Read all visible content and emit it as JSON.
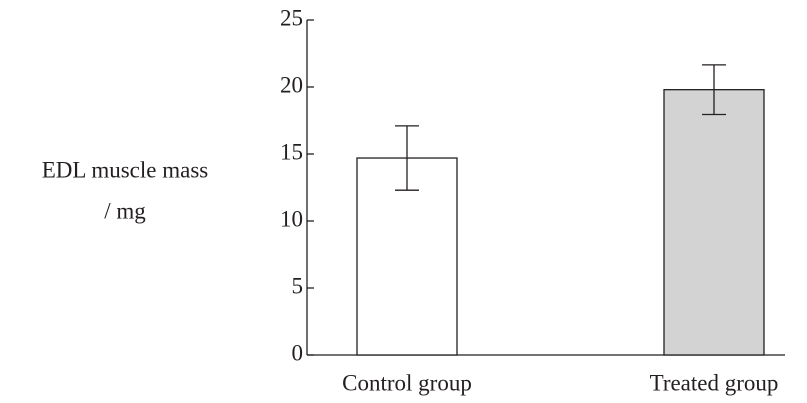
{
  "chart_data": {
    "type": "bar",
    "y_label": [
      "EDL muscle mass",
      "/ mg"
    ],
    "categories": [
      "Control group",
      "Treated group"
    ],
    "values": [
      14.7,
      19.8
    ],
    "errors": [
      2.4,
      1.85
    ],
    "colors": [
      "#ffffff",
      "#d3d3d3"
    ],
    "ylim": [
      0,
      25
    ],
    "yticks": [
      0,
      5,
      10,
      15,
      20,
      25
    ],
    "grid": false
  }
}
